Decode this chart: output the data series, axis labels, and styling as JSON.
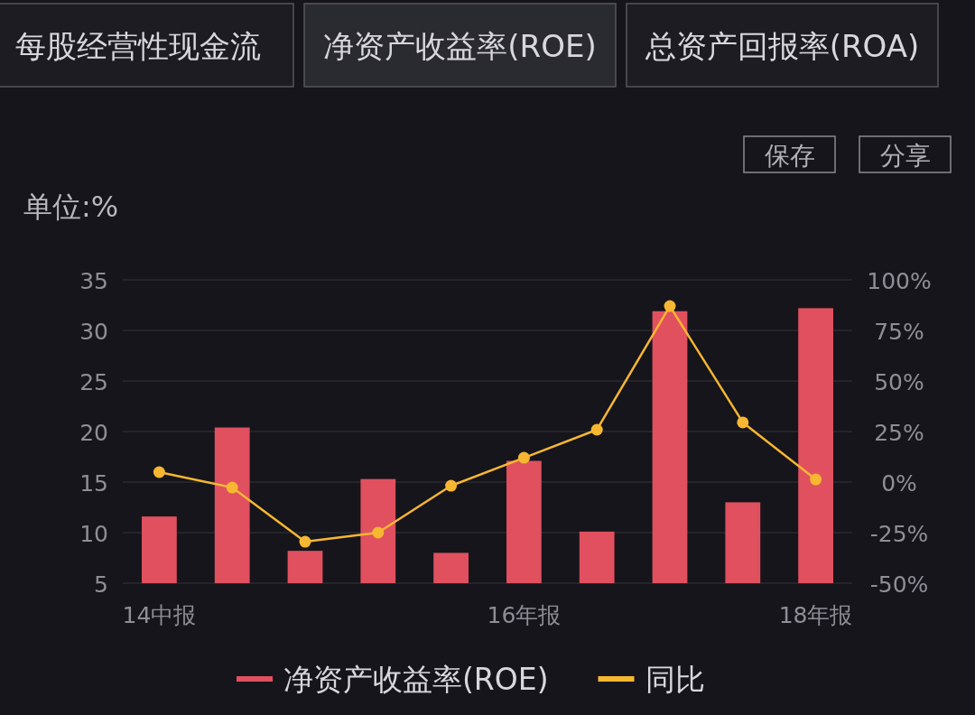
{
  "chart_data": {
    "type": "bar",
    "annotations": [
      "每股经营性现金流",
      "净资产收益率(ROE)",
      "总资产回报率(ROA)",
      "保存",
      "分享"
    ],
    "ylabel": "单位:%",
    "categories": [
      "14中报",
      null,
      null,
      null,
      null,
      "16年报",
      null,
      null,
      null,
      "18年报"
    ],
    "series": [
      {
        "name": "净资产收益率(ROE)",
        "color": "#e0505f",
        "values": [
          11.6,
          20.4,
          8.2,
          15.3,
          8.0,
          17.1,
          10.1,
          31.9,
          13.0,
          32.2
        ]
      },
      {
        "name": "同比",
        "type": "line",
        "axis": "y2",
        "color": "#f7b731",
        "values": [
          4.9,
          -2.7,
          -29.5,
          -25,
          -1.8,
          12,
          25.9,
          87,
          29.5,
          1.3
        ]
      }
    ],
    "ylim": [
      5,
      35
    ],
    "yticks": [
      5,
      10,
      15,
      20,
      25,
      30,
      35
    ],
    "y2lim": [
      -50,
      100
    ],
    "y2ticks": [
      {
        "value": -50,
        "label": "-50%"
      },
      {
        "value": -25,
        "label": "-25%"
      },
      {
        "value": 0,
        "label": "0%"
      },
      {
        "value": 25,
        "label": "25%"
      },
      {
        "value": 50,
        "label": "50%"
      },
      {
        "value": 75,
        "label": "75%"
      },
      {
        "value": 100,
        "label": "100%"
      }
    ],
    "grid": "y",
    "legend": "bottom",
    "marker": "circle",
    "line_style": "solid"
  }
}
